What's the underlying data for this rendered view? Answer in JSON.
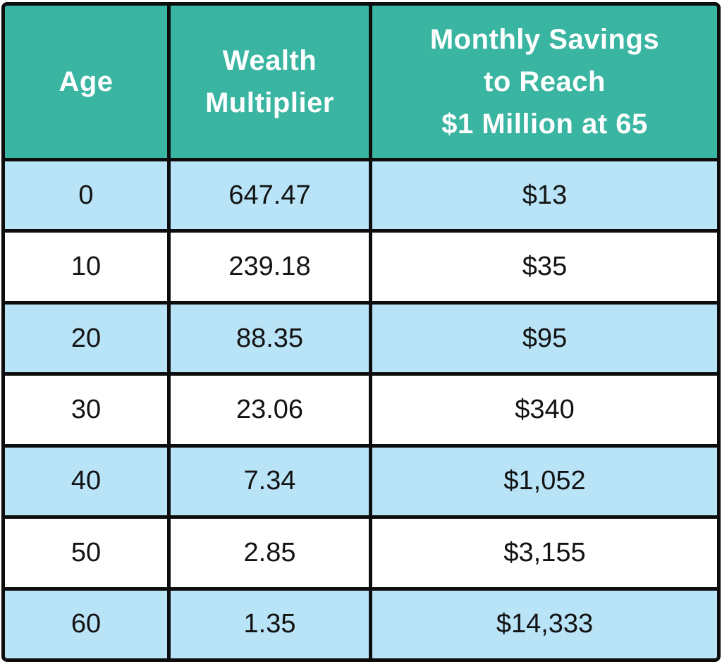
{
  "chart_data": {
    "type": "table",
    "columns": [
      "Age",
      "Wealth Multiplier",
      "Monthly Savings to Reach $1 Million at 65"
    ],
    "header_lines": [
      [
        "Age"
      ],
      [
        "Wealth",
        "Multiplier"
      ],
      [
        "Monthly Savings",
        "to Reach",
        "$1 Million at 65"
      ]
    ],
    "rows": [
      [
        "0",
        "647.47",
        "$13"
      ],
      [
        "10",
        "239.18",
        "$35"
      ],
      [
        "20",
        "88.35",
        "$95"
      ],
      [
        "30",
        "23.06",
        "$340"
      ],
      [
        "40",
        "7.34",
        "$1,052"
      ],
      [
        "50",
        "2.85",
        "$3,155"
      ],
      [
        "60",
        "1.35",
        "$14,333"
      ]
    ]
  },
  "colors": {
    "header_bg": "#3ab5a1",
    "row_alt_bg": "#b9e3f7",
    "row_bg": "#ffffff",
    "border": "#0d0d0d",
    "header_text": "#ffffff",
    "body_text": "#131313"
  }
}
